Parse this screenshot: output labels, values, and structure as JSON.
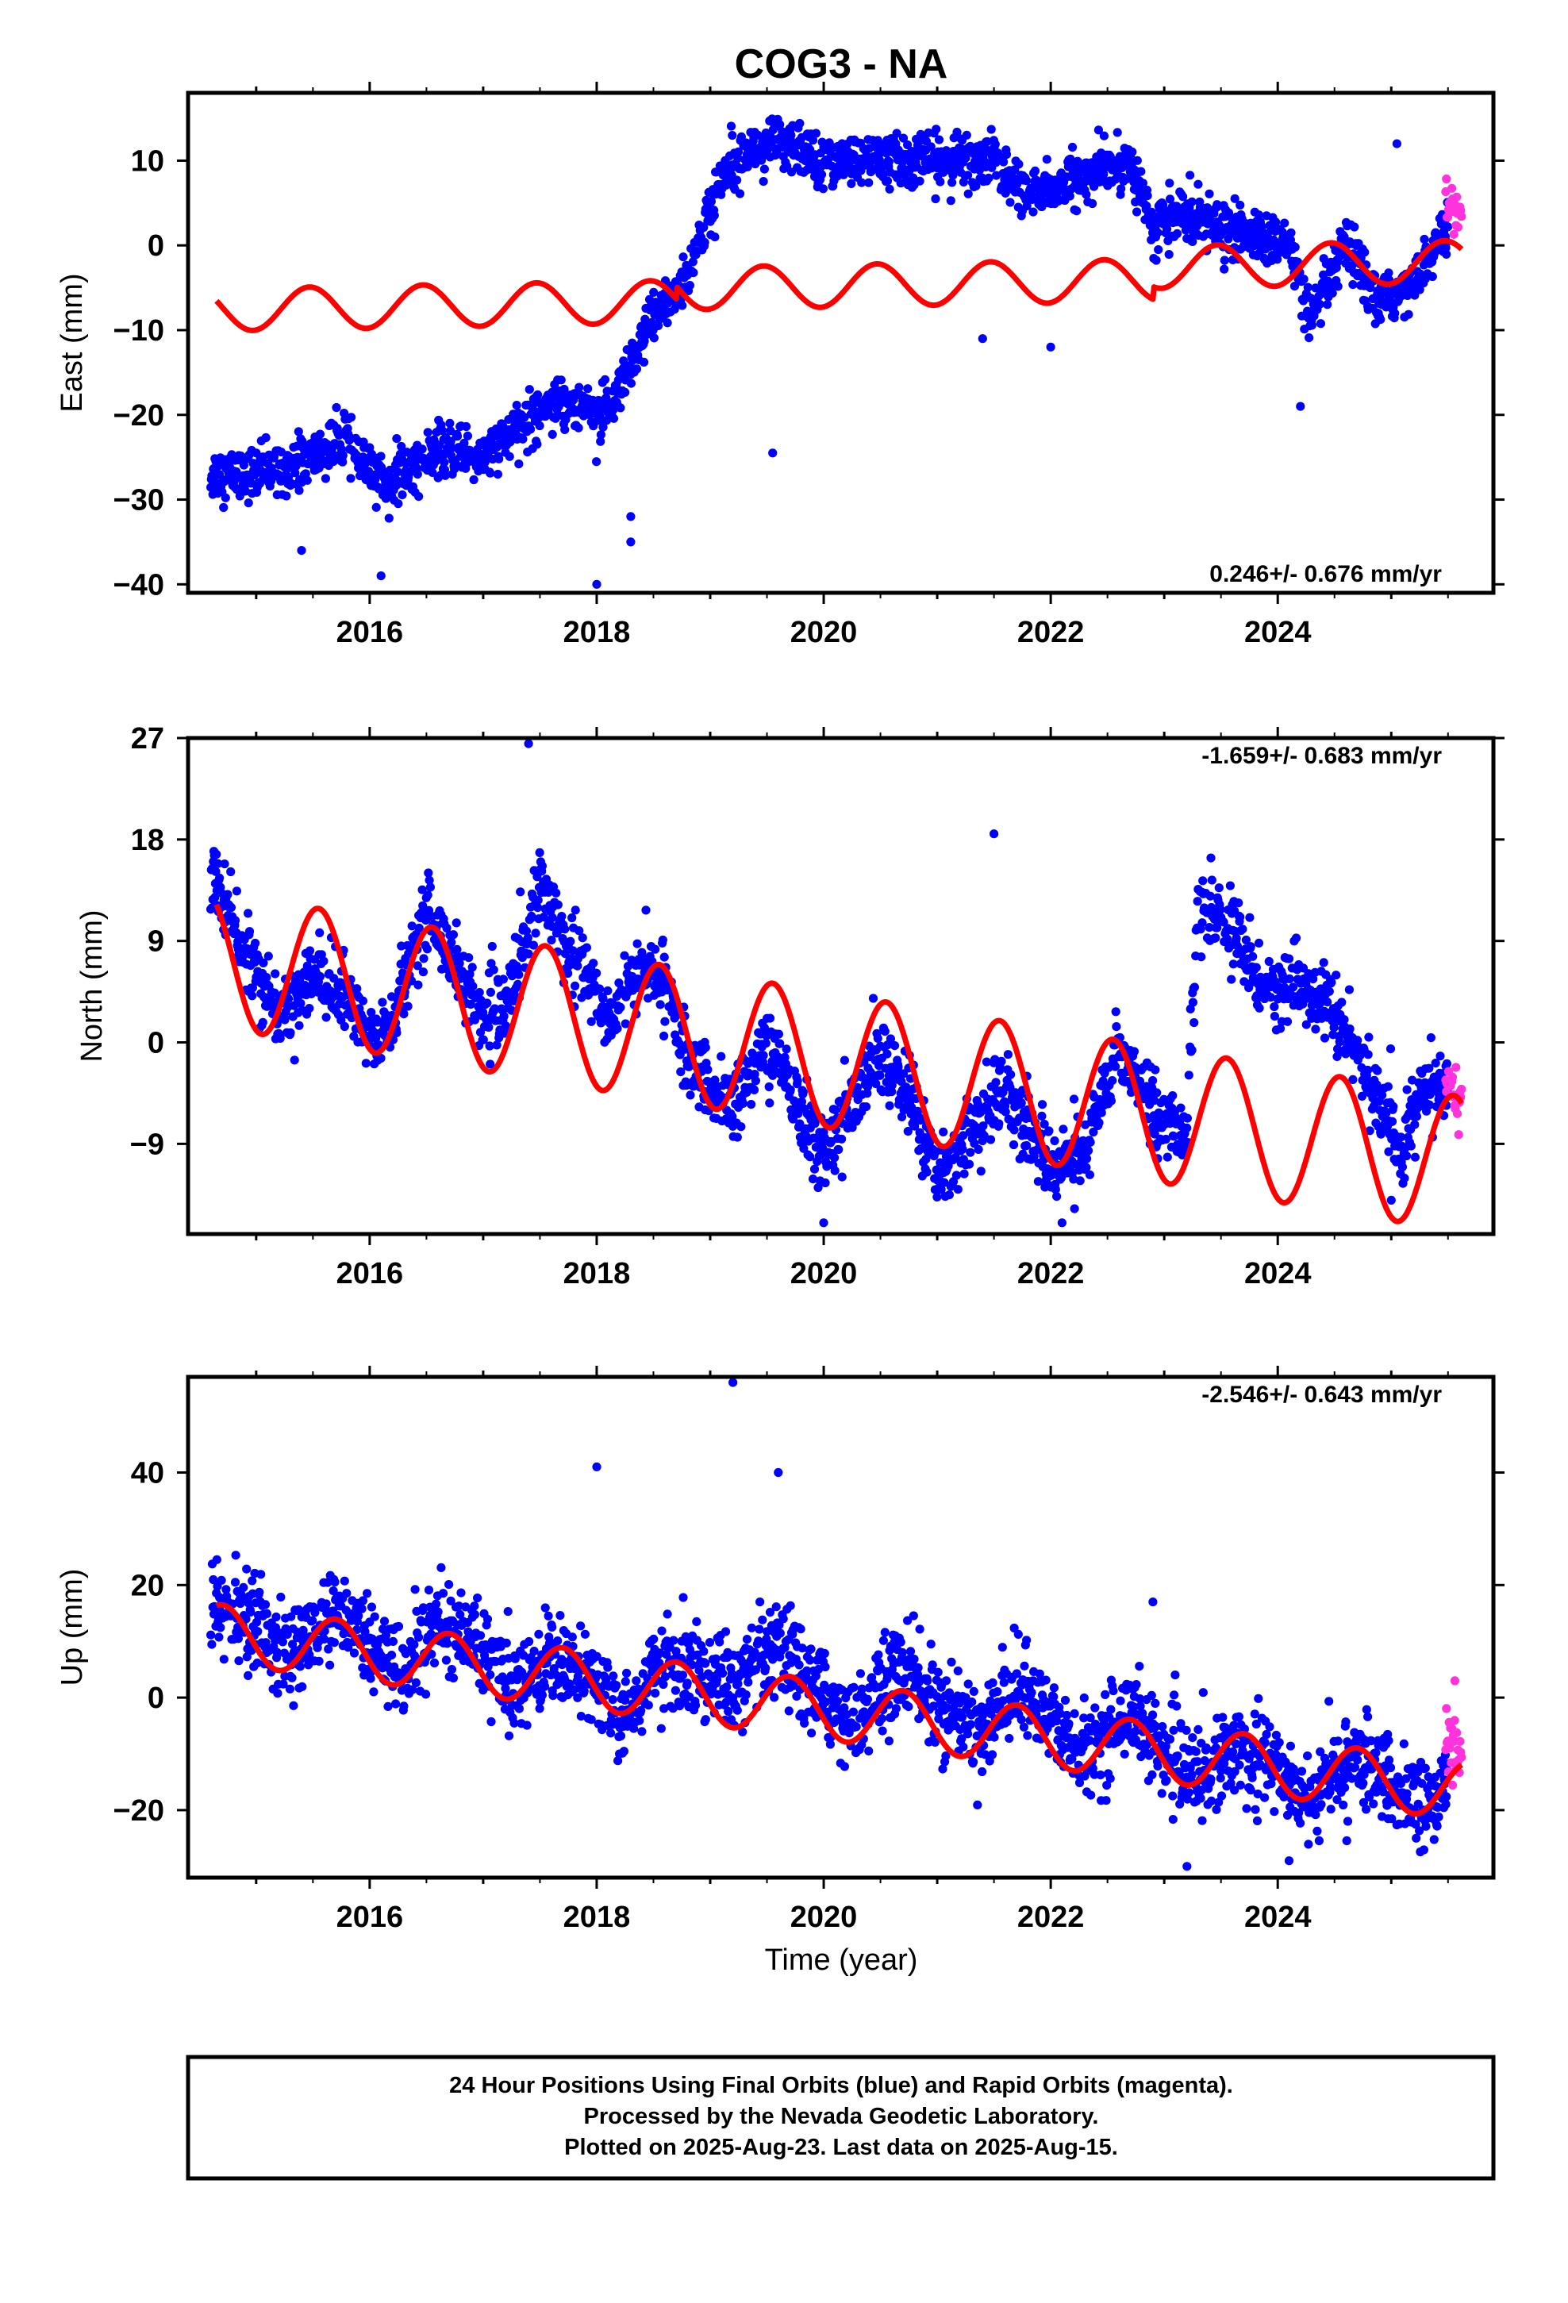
{
  "title": "COG3 - NA",
  "xlabel": "Time (year)",
  "footer": {
    "lines": [
      "24 Hour Positions Using Final Orbits (blue) and Rapid Orbits (magenta).",
      "Processed by the Nevada Geodetic Laboratory.",
      "Plotted on 2025-Aug-23. Last data on 2025-Aug-15."
    ]
  },
  "colors": {
    "final_orbits": "#0000ff",
    "rapid_orbits": "#ff33dd",
    "model": "#ff0000",
    "frame": "#000000"
  },
  "chart_data": [
    {
      "type": "scatter",
      "ylabel": "East (mm)",
      "rate_text": "0.246+/- 0.676 mm/yr",
      "rate_placement": "bottom-right",
      "xlim": [
        2014.4,
        2025.9
      ],
      "ylim": [
        -41,
        18
      ],
      "xticks": [
        2016,
        2018,
        2020,
        2022,
        2024
      ],
      "yticks": [
        -40,
        -30,
        -20,
        -10,
        0,
        10
      ],
      "grid": false,
      "series": [
        {
          "name": "Final Orbits (blue)",
          "style": "points",
          "trend": [
            [
              2014.6,
              -27
            ],
            [
              2015.0,
              -27
            ],
            [
              2015.5,
              -25
            ],
            [
              2015.8,
              -23
            ],
            [
              2016.0,
              -27
            ],
            [
              2016.2,
              -28
            ],
            [
              2016.5,
              -25
            ],
            [
              2016.8,
              -24
            ],
            [
              2017.0,
              -25
            ],
            [
              2017.3,
              -22
            ],
            [
              2017.6,
              -18
            ],
            [
              2017.9,
              -19
            ],
            [
              2018.1,
              -20
            ],
            [
              2018.3,
              -15
            ],
            [
              2018.5,
              -8
            ],
            [
              2018.75,
              -5
            ],
            [
              2019.2,
              11
            ],
            [
              2019.6,
              12
            ],
            [
              2020.0,
              10
            ],
            [
              2020.5,
              10
            ],
            [
              2020.9,
              10
            ],
            [
              2021.1,
              10
            ],
            [
              2021.5,
              10
            ],
            [
              2021.8,
              6
            ],
            [
              2022.1,
              7
            ],
            [
              2022.5,
              9
            ],
            [
              2022.7,
              10
            ],
            [
              2022.9,
              2
            ],
            [
              2023.2,
              4
            ],
            [
              2023.5,
              2
            ],
            [
              2023.8,
              1
            ],
            [
              2024.1,
              0
            ],
            [
              2024.3,
              -9
            ],
            [
              2024.6,
              0
            ],
            [
              2024.9,
              -7
            ],
            [
              2025.2,
              -4
            ],
            [
              2025.5,
              2
            ]
          ],
          "noise": 1.5,
          "outliers": [
            [
              2015.4,
              -36
            ],
            [
              2016.1,
              -39
            ],
            [
              2018.0,
              -40
            ],
            [
              2018.3,
              -32
            ],
            [
              2018.3,
              -35
            ],
            [
              2019.55,
              -24.5
            ],
            [
              2022.0,
              -12
            ],
            [
              2024.2,
              -19
            ],
            [
              2021.4,
              -11
            ],
            [
              2025.05,
              12
            ]
          ]
        },
        {
          "name": "Rapid Orbits (magenta)",
          "style": "points",
          "trend": [
            [
              2025.48,
              5
            ],
            [
              2025.62,
              4
            ]
          ],
          "noise": 1.2,
          "outliers": []
        },
        {
          "name": "model",
          "style": "line",
          "rate": 0.246,
          "offset": -6.3,
          "t0": 2020.0,
          "amp": 2.5,
          "phase": 2025.47,
          "offsets": [
            [
              2018.7,
              1.5
            ],
            [
              2022.9,
              1.5
            ]
          ]
        }
      ]
    },
    {
      "type": "scatter",
      "ylabel": "North (mm)",
      "rate_text": "-1.659+/- 0.683 mm/yr",
      "rate_placement": "top-right",
      "xlim": [
        2014.4,
        2025.9
      ],
      "ylim": [
        -17,
        27
      ],
      "xticks": [
        2016,
        2018,
        2020,
        2022,
        2024
      ],
      "yticks": [
        -9,
        0,
        9,
        18,
        27
      ],
      "grid": false,
      "series": [
        {
          "name": "Final Orbits (blue)",
          "style": "points",
          "trend": [
            [
              2014.6,
              16
            ],
            [
              2014.8,
              10
            ],
            [
              2015.0,
              6
            ],
            [
              2015.2,
              2
            ],
            [
              2015.5,
              6
            ],
            [
              2015.8,
              4
            ],
            [
              2016.0,
              0
            ],
            [
              2016.2,
              2
            ],
            [
              2016.5,
              12
            ],
            [
              2016.8,
              6
            ],
            [
              2017.0,
              2
            ],
            [
              2017.2,
              3
            ],
            [
              2017.5,
              14
            ],
            [
              2017.9,
              6
            ],
            [
              2018.1,
              2
            ],
            [
              2018.3,
              6
            ],
            [
              2018.6,
              6
            ],
            [
              2018.8,
              -2
            ],
            [
              2019.2,
              -6
            ],
            [
              2019.5,
              0
            ],
            [
              2019.8,
              -6
            ],
            [
              2020.0,
              -10
            ],
            [
              2020.5,
              -1
            ],
            [
              2020.8,
              -6
            ],
            [
              2021.0,
              -12
            ],
            [
              2021.3,
              -8
            ],
            [
              2021.6,
              -4
            ],
            [
              2022.0,
              -11
            ],
            [
              2022.3,
              -10
            ],
            [
              2022.6,
              0
            ],
            [
              2022.9,
              -6
            ],
            [
              2023.2,
              -8
            ],
            [
              2023.3,
              12
            ],
            [
              2023.6,
              10
            ],
            [
              2023.9,
              5
            ],
            [
              2024.1,
              5
            ],
            [
              2024.4,
              4
            ],
            [
              2024.7,
              -1
            ],
            [
              2024.9,
              -6
            ],
            [
              2025.1,
              -9
            ],
            [
              2025.3,
              -4
            ],
            [
              2025.5,
              -4
            ]
          ],
          "noise": 1.6,
          "outliers": [
            [
              2017.4,
              26.5
            ],
            [
              2021.5,
              18.5
            ],
            [
              2020.0,
              -16
            ],
            [
              2022.1,
              -16
            ],
            [
              2025.0,
              -14
            ]
          ]
        },
        {
          "name": "Rapid Orbits (magenta)",
          "style": "points",
          "trend": [
            [
              2025.48,
              -4
            ],
            [
              2025.62,
              -5
            ]
          ],
          "noise": 1.2,
          "outliers": []
        },
        {
          "name": "model",
          "style": "line",
          "rate": -1.659,
          "offset": -1.5,
          "t0": 2020.0,
          "amp": 6.0,
          "phase": 2024.55,
          "offsets": [
            [
              2023.3,
              0
            ]
          ]
        }
      ]
    },
    {
      "type": "scatter",
      "ylabel": "Up (mm)",
      "rate_text": "-2.546+/- 0.643 mm/yr",
      "rate_placement": "top-right",
      "xlim": [
        2014.4,
        2025.9
      ],
      "ylim": [
        -32,
        57
      ],
      "xticks": [
        2016,
        2018,
        2020,
        2022,
        2024
      ],
      "yticks": [
        -20,
        0,
        20,
        40
      ],
      "grid": false,
      "series": [
        {
          "name": "Final Orbits (blue)",
          "style": "points",
          "trend": [
            [
              2014.6,
              16
            ],
            [
              2015.0,
              13
            ],
            [
              2015.3,
              7
            ],
            [
              2015.7,
              16
            ],
            [
              2016.0,
              8
            ],
            [
              2016.3,
              5
            ],
            [
              2016.6,
              14
            ],
            [
              2017.0,
              8
            ],
            [
              2017.3,
              2
            ],
            [
              2017.6,
              8
            ],
            [
              2018.0,
              2
            ],
            [
              2018.2,
              -4
            ],
            [
              2018.6,
              7
            ],
            [
              2019.2,
              2
            ],
            [
              2019.6,
              8
            ],
            [
              2020.0,
              0
            ],
            [
              2020.3,
              -4
            ],
            [
              2020.7,
              6
            ],
            [
              2021.0,
              -2
            ],
            [
              2021.4,
              -6
            ],
            [
              2021.7,
              2
            ],
            [
              2022.0,
              -4
            ],
            [
              2022.3,
              -10
            ],
            [
              2022.7,
              -2
            ],
            [
              2023.0,
              -10
            ],
            [
              2023.3,
              -14
            ],
            [
              2023.7,
              -8
            ],
            [
              2024.0,
              -13
            ],
            [
              2024.3,
              -18
            ],
            [
              2024.7,
              -10
            ],
            [
              2025.0,
              -16
            ],
            [
              2025.3,
              -20
            ],
            [
              2025.5,
              -16
            ]
          ],
          "noise": 4.0,
          "outliers": [
            [
              2019.2,
              56
            ],
            [
              2019.6,
              40
            ],
            [
              2018.0,
              41
            ],
            [
              2022.9,
              17
            ],
            [
              2024.1,
              -29
            ],
            [
              2023.2,
              -30
            ]
          ]
        },
        {
          "name": "Rapid Orbits (magenta)",
          "style": "points",
          "trend": [
            [
              2025.48,
              -8
            ],
            [
              2025.62,
              -10
            ]
          ],
          "noise": 3.0,
          "outliers": [
            [
              2025.56,
              3
            ]
          ]
        },
        {
          "name": "model",
          "style": "line",
          "rate": -2.546,
          "offset": -2.2,
          "t0": 2020.0,
          "amp": 5.2,
          "phase": 2025.7,
          "offsets": []
        }
      ]
    }
  ]
}
